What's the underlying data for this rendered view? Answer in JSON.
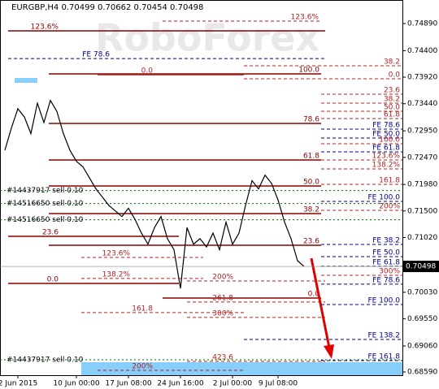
{
  "chart_data": {
    "type": "line",
    "title": "EURGBP,H4  0.70499 0.70662 0.70454 0.70498",
    "watermark": "RoboForex",
    "color": "#000000",
    "categories": [
      null,
      null,
      "2 Jun 2015",
      null,
      null,
      null,
      null,
      null,
      null,
      null,
      null,
      "10 Jun 00:00",
      null,
      null,
      null,
      null,
      null,
      null,
      null,
      "17 Jun 08:00",
      null,
      null,
      null,
      null,
      null,
      null,
      null,
      "24 Jun 16:00",
      null,
      null,
      null,
      null,
      null,
      null,
      null,
      "2 Jul 00:00",
      null,
      null,
      null,
      null,
      null,
      null,
      "9 Jul 08:00",
      null,
      null,
      null,
      null
    ],
    "values": [
      0.726,
      0.73,
      0.7335,
      0.732,
      0.729,
      0.7345,
      0.731,
      0.735,
      0.733,
      0.729,
      0.726,
      0.724,
      0.723,
      0.721,
      0.719,
      0.7175,
      0.716,
      0.715,
      0.714,
      0.7155,
      0.7135,
      0.711,
      0.709,
      0.712,
      0.714,
      0.71,
      0.708,
      0.701,
      0.712,
      0.709,
      0.71,
      0.7085,
      0.711,
      0.708,
      0.713,
      0.709,
      0.711,
      0.716,
      0.7205,
      0.719,
      0.7215,
      0.72,
      0.717,
      0.713,
      0.71,
      0.706,
      0.70498
    ],
    "ylim": [
      0.68531,
      0.75316
    ],
    "yticks": [
      {
        "value": 0.7489,
        "label": "0.74890"
      },
      {
        "value": 0.744,
        "label": "0.74400"
      },
      {
        "value": 0.7392,
        "label": "0.73920"
      },
      {
        "value": 0.7344,
        "label": "0.73440"
      },
      {
        "value": 0.7295,
        "label": "0.72950"
      },
      {
        "value": 0.7247,
        "label": "0.72470"
      },
      {
        "value": 0.7198,
        "label": "0.71980"
      },
      {
        "value": 0.715,
        "label": "0.71500"
      },
      {
        "value": 0.7102,
        "label": "0.71020"
      },
      {
        "value": 0.7003,
        "label": "0.70030"
      },
      {
        "value": 0.6955,
        "label": "0.69550"
      },
      {
        "value": 0.6906,
        "label": "0.69060"
      },
      {
        "value": 0.6859,
        "label": "0.68590"
      }
    ],
    "last_price": 0.70498,
    "levels": [
      {
        "label": "123.6%",
        "value": 0.74934,
        "color": "#b22222",
        "style": "dashed"
      },
      {
        "label": "123.6%",
        "value": 0.74758,
        "color": "#8b0000",
        "style": "solid"
      },
      {
        "label": "FE 78.6",
        "value": 0.74257,
        "color": "#00008b",
        "style": "dashed"
      },
      {
        "label": "38.2",
        "value": 0.74127,
        "color": "#b22222",
        "style": "dashed"
      },
      {
        "label": "100.0",
        "value": 0.7398,
        "color": "#8b0000",
        "style": "solid"
      },
      {
        "label": "0.0",
        "value": 0.73965,
        "color": "#b22222",
        "style": "solid"
      },
      {
        "label": "0.0",
        "value": 0.73892,
        "color": "#b22222",
        "style": "dashed"
      },
      {
        "label": "23.6",
        "value": 0.73613,
        "color": "#b22222",
        "style": "dashed"
      },
      {
        "label": "38.2",
        "value": 0.73451,
        "color": "#b22222",
        "style": "dashed"
      },
      {
        "label": "50.0",
        "value": 0.73304,
        "color": "#b22222",
        "style": "dashed"
      },
      {
        "label": "61.8",
        "value": 0.73172,
        "color": "#b22222",
        "style": "dashed"
      },
      {
        "label": "78.6",
        "value": 0.73084,
        "color": "#8b0000",
        "style": "solid"
      },
      {
        "label": "FE 78.6",
        "value": 0.72981,
        "color": "#00008b",
        "style": "dashed"
      },
      {
        "label": "FE 50.0",
        "value": 0.7282,
        "color": "#00008b",
        "style": "dashed"
      },
      {
        "label": "100.0",
        "value": 0.72717,
        "color": "#b22222",
        "style": "dashed"
      },
      {
        "label": "FE 61.8",
        "value": 0.7257,
        "color": "#00008b",
        "style": "dashed"
      },
      {
        "label": "61.8",
        "value": 0.72423,
        "color": "#8b0000",
        "style": "solid"
      },
      {
        "label": "123.6%",
        "value": 0.72423,
        "color": "#b22222",
        "style": "dashed"
      },
      {
        "label": "138.2%",
        "value": 0.72262,
        "color": "#b22222",
        "style": "dashed"
      },
      {
        "label": "161.8",
        "value": 0.71983,
        "color": "#b22222",
        "style": "dashed"
      },
      {
        "label": "50.0",
        "value": 0.71953,
        "color": "#8b0000",
        "style": "solid"
      },
      {
        "label": "FE 100.0",
        "value": 0.71674,
        "color": "#00008b",
        "style": "dashed"
      },
      {
        "label": "200%",
        "value": 0.71513,
        "color": "#b22222",
        "style": "dashed"
      },
      {
        "label": "38.2",
        "value": 0.71454,
        "color": "#8b0000",
        "style": "solid"
      },
      {
        "label": "23.6",
        "value": 0.71043,
        "color": "#8b0000",
        "style": "solid"
      },
      {
        "label": "FE 38.2",
        "value": 0.70896,
        "color": "#00008b",
        "style": "dashed"
      },
      {
        "label": "23.6",
        "value": 0.70881,
        "color": "#8b0000",
        "style": "solid"
      },
      {
        "label": "FE 50.0",
        "value": 0.70676,
        "color": "#00008b",
        "style": "dashed"
      },
      {
        "label": "123.6%",
        "value": 0.70661,
        "color": "#b22222",
        "style": "dashed"
      },
      {
        "label": "FE 61.8",
        "value": 0.705,
        "color": "#00008b",
        "style": "dashed"
      },
      {
        "label": "300%",
        "value": 0.70338,
        "color": "#b22222",
        "style": "dashed"
      },
      {
        "label": "138.2%",
        "value": 0.7028,
        "color": "#b22222",
        "style": "dashed"
      },
      {
        "label": "200%",
        "value": 0.70235,
        "color": "#b22222",
        "style": "dashed"
      },
      {
        "label": "0.0",
        "value": 0.70191,
        "color": "#8b0000",
        "style": "solid"
      },
      {
        "label": "FE 78.6",
        "value": 0.70177,
        "color": "#00008b",
        "style": "dashed"
      },
      {
        "label": "0.0",
        "value": 0.69927,
        "color": "#8b0000",
        "style": "solid"
      },
      {
        "label": "261.8",
        "value": 0.69854,
        "color": "#b22222",
        "style": "dashed"
      },
      {
        "label": "FE 100.0",
        "value": 0.69809,
        "color": "#00008b",
        "style": "dashed"
      },
      {
        "label": "161.8",
        "value": 0.69663,
        "color": "#b22222",
        "style": "dashed"
      },
      {
        "label": "300%",
        "value": 0.69575,
        "color": "#b22222",
        "style": "dashed"
      },
      {
        "label": "FE 138.2",
        "value": 0.69178,
        "color": "#00008b",
        "style": "dashed"
      },
      {
        "label": "FE 161.8",
        "value": 0.68796,
        "color": "#00008b",
        "style": "dashed"
      },
      {
        "label": "423.6",
        "value": 0.68781,
        "color": "#b22222",
        "style": "dashed"
      },
      {
        "label": "200%",
        "value": 0.6862,
        "color": "#b22222",
        "style": "dashed"
      }
    ],
    "orders": [
      {
        "label": "#14437917 sell 0.10",
        "value": 0.71871
      },
      {
        "label": "#14516650 sell 0.10",
        "value": 0.71636
      },
      {
        "label": "#14516650 sell 0.10",
        "value": 0.71342
      },
      {
        "label": "#14437917 sell 0.10",
        "value": 0.6881
      }
    ]
  }
}
